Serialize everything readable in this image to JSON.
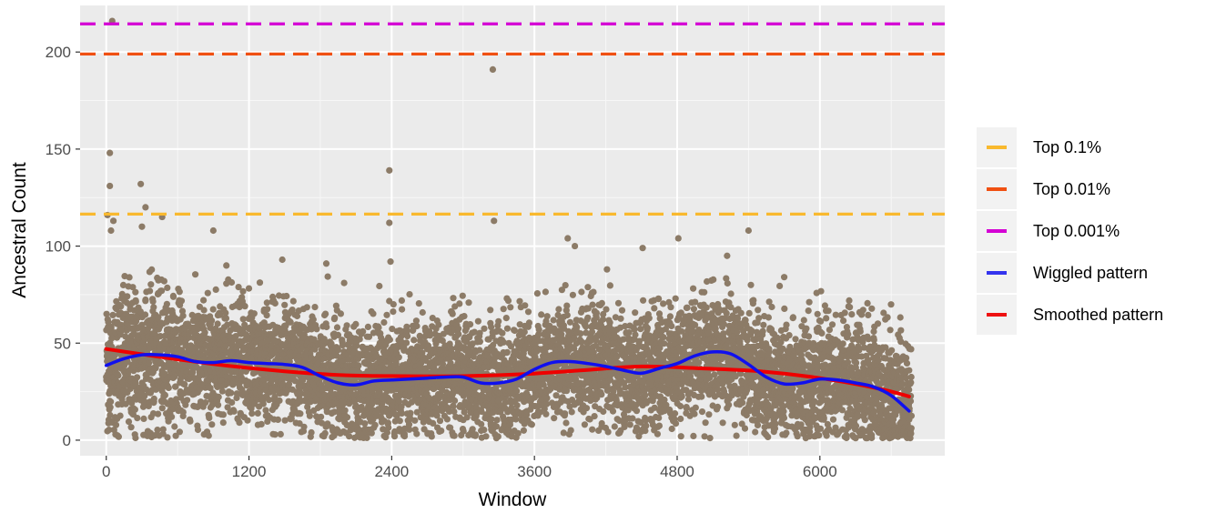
{
  "chart_data": {
    "type": "scatter",
    "xlabel": "Window",
    "ylabel": "Ancestral Count",
    "xlim": [
      -220,
      7050
    ],
    "ylim": [
      -8,
      224
    ],
    "x_ticks": [
      0,
      1200,
      2400,
      3600,
      4800,
      6000
    ],
    "y_ticks": [
      0,
      50,
      100,
      150,
      200
    ],
    "grid": true,
    "legend_position": "right",
    "point_color": "#8c7b67",
    "n_points_approx": 6800,
    "outliers": [
      {
        "x": 30,
        "y": 148
      },
      {
        "x": 30,
        "y": 131
      },
      {
        "x": 50,
        "y": 216
      },
      {
        "x": 10,
        "y": 116
      },
      {
        "x": 60,
        "y": 113
      },
      {
        "x": 40,
        "y": 108
      },
      {
        "x": 290,
        "y": 132
      },
      {
        "x": 330,
        "y": 120
      },
      {
        "x": 300,
        "y": 110
      },
      {
        "x": 470,
        "y": 115
      },
      {
        "x": 900,
        "y": 108
      },
      {
        "x": 1010,
        "y": 90
      },
      {
        "x": 1480,
        "y": 93
      },
      {
        "x": 1850,
        "y": 91
      },
      {
        "x": 2000,
        "y": 81
      },
      {
        "x": 2380,
        "y": 139
      },
      {
        "x": 2380,
        "y": 112
      },
      {
        "x": 2390,
        "y": 92
      },
      {
        "x": 3250,
        "y": 191
      },
      {
        "x": 3260,
        "y": 113
      },
      {
        "x": 3880,
        "y": 104
      },
      {
        "x": 3940,
        "y": 100
      },
      {
        "x": 4210,
        "y": 88
      },
      {
        "x": 4510,
        "y": 99
      },
      {
        "x": 4810,
        "y": 104
      },
      {
        "x": 5220,
        "y": 95
      },
      {
        "x": 5400,
        "y": 108
      },
      {
        "x": 5700,
        "y": 84
      }
    ],
    "hlines": [
      {
        "name": "Top 0.1%",
        "y": 116.5,
        "color": "#f9b92e"
      },
      {
        "name": "Top 0.01%",
        "y": 199,
        "color": "#f05012"
      },
      {
        "name": "Top 0.001%",
        "y": 214.5,
        "color": "#d400d4"
      }
    ],
    "lines": [
      {
        "name": "Wiggled pattern",
        "color": "#1010ee",
        "x": [
          0,
          150,
          300,
          450,
          600,
          750,
          900,
          1050,
          1200,
          1350,
          1500,
          1650,
          1800,
          1950,
          2100,
          2250,
          2400,
          2550,
          2700,
          2850,
          3000,
          3150,
          3300,
          3450,
          3600,
          3750,
          3900,
          4050,
          4200,
          4350,
          4500,
          4650,
          4800,
          4950,
          5100,
          5250,
          5400,
          5550,
          5700,
          5850,
          6000,
          6150,
          6300,
          6450,
          6600,
          6750
        ],
        "y": [
          38.5,
          42,
          44,
          44,
          43,
          40.5,
          40,
          41,
          40,
          39.5,
          39,
          37.5,
          33,
          29.5,
          28.5,
          30.5,
          31,
          31.5,
          32,
          32.5,
          32.5,
          29.5,
          29.5,
          31.5,
          36.5,
          40,
          40.5,
          39.5,
          38,
          36,
          34.5,
          37,
          39.5,
          43.5,
          45.5,
          44.5,
          39,
          32.5,
          29,
          29.5,
          31.5,
          31,
          29.5,
          27.5,
          23,
          15
        ]
      },
      {
        "name": "Smoothed pattern",
        "color": "#ee0000",
        "x": [
          0,
          500,
          1000,
          1500,
          2000,
          2500,
          3000,
          3500,
          4000,
          4500,
          5000,
          5500,
          6000,
          6500,
          6750
        ],
        "y": [
          47,
          42.5,
          38.5,
          35.5,
          33.5,
          33,
          33,
          34,
          36,
          38,
          37,
          35.5,
          32,
          26.5,
          22.5
        ]
      }
    ],
    "legend": [
      {
        "label": "Top 0.1%",
        "color": "#f9b92e"
      },
      {
        "label": "Top 0.01%",
        "color": "#f05012"
      },
      {
        "label": "Top 0.001%",
        "color": "#d400d4"
      },
      {
        "label": "Wiggled pattern",
        "color": "#3434ee"
      },
      {
        "label": "Smoothed pattern",
        "color": "#ee1111"
      }
    ]
  }
}
